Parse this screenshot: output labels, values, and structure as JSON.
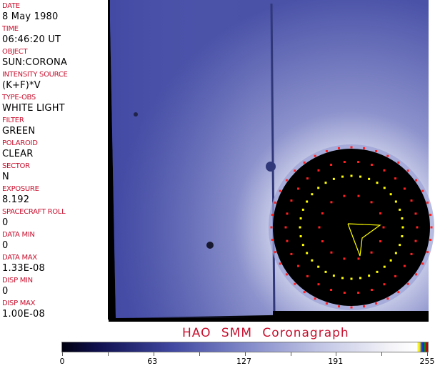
{
  "header_fields": [
    {
      "label": "DATE",
      "value": "8 May 1980"
    },
    {
      "label": "TIME",
      "value": "06:46:20 UT"
    },
    {
      "label": "OBJECT",
      "value": "SUN:CORONA"
    },
    {
      "label": "INTENSITY SOURCE",
      "value": "(K+F)*V"
    },
    {
      "label": "TYPE-OBS",
      "value": "WHITE LIGHT"
    },
    {
      "label": "FILTER",
      "value": "GREEN"
    },
    {
      "label": "POLAROID",
      "value": "CLEAR"
    },
    {
      "label": "SECTOR",
      "value": "N"
    },
    {
      "label": "EXPOSURE",
      "value": "8.192"
    },
    {
      "label": "SPACECRAFT ROLL",
      "value": "0"
    },
    {
      "label": "DATA MIN",
      "value": "0"
    },
    {
      "label": "DATA MAX",
      "value": "1.33E-08"
    },
    {
      "label": "DISP MIN",
      "value": "0"
    },
    {
      "label": "DISP MAX",
      "value": "1.00E-08"
    }
  ],
  "title": "HAO  SMM  Coronagraph",
  "colorbar": {
    "ticks": [
      "0",
      "63",
      "127",
      "191",
      "255"
    ]
  },
  "colors": {
    "label": "#c8102e",
    "overlay_yellow": "#ffff00",
    "overlay_red": "#ff2020",
    "image_blue": "#5058b0"
  }
}
